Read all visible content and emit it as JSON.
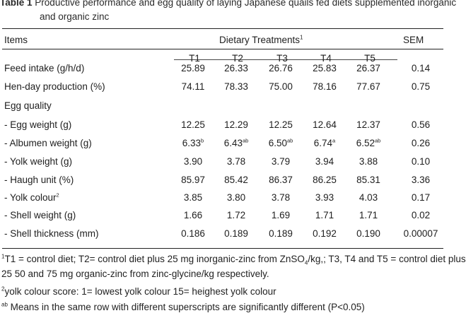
{
  "caption": {
    "label": "Table 1",
    "line1": "Productive performance and egg quality of laying Japanese quails fed diets supplemented inorganic",
    "line2": "and organic zinc"
  },
  "header": {
    "items": "Items",
    "treatments": "Dietary Treatments",
    "treatments_mark": "1",
    "sem": "SEM",
    "columns": [
      "T1",
      "T2",
      "T3",
      "T4",
      "T5"
    ]
  },
  "rows": [
    {
      "label": "Feed intake (g/h/d)",
      "values": [
        "25.89",
        "26.33",
        "26.76",
        "25.83",
        "26.37"
      ],
      "sups": [
        "",
        "",
        "",
        "",
        ""
      ],
      "sem": "0.14"
    },
    {
      "label": "Hen-day production (%)",
      "values": [
        "74.11",
        "78.33",
        "75.00",
        "78.16",
        "77.67"
      ],
      "sups": [
        "",
        "",
        "",
        "",
        ""
      ],
      "sem": "0.75"
    },
    {
      "label": "Egg quality",
      "values": [
        "",
        "",
        "",
        "",
        ""
      ],
      "sups": [
        "",
        "",
        "",
        "",
        ""
      ],
      "sem": ""
    },
    {
      "label": " - Egg weight (g)",
      "values": [
        "12.25",
        "12.29",
        "12.25",
        "12.64",
        "12.37"
      ],
      "sups": [
        "",
        "",
        "",
        "",
        ""
      ],
      "sem": "0.56"
    },
    {
      "label": " - Albumen weight (g)",
      "values": [
        "6.33",
        "6.43",
        "6.50",
        "6.74",
        "6.52"
      ],
      "sups": [
        "b",
        "ab",
        "ab",
        "a",
        "ab"
      ],
      "sem": "0.26"
    },
    {
      "label": " - Yolk weight (g)",
      "values": [
        "3.90",
        "3.78",
        "3.79",
        "3.94",
        "3.88"
      ],
      "sups": [
        "",
        "",
        "",
        "",
        ""
      ],
      "sem": "0.10"
    },
    {
      "label": " - Haugh unit (%)",
      "values": [
        "85.97",
        "85.42",
        "86.37",
        "86.25",
        "85.31"
      ],
      "sups": [
        "",
        "",
        "",
        "",
        ""
      ],
      "sem": "3.36"
    },
    {
      "label": " - Yolk colour",
      "label_sup": "2",
      "values": [
        "3.85",
        "3.80",
        "3.78",
        "3.93",
        "4.03"
      ],
      "sups": [
        "",
        "",
        "",
        "",
        ""
      ],
      "sem": "0.17"
    },
    {
      "label": " - Shell weight (g)",
      "values": [
        "1.66",
        "1.72",
        "1.69",
        "1.71",
        "1.71"
      ],
      "sups": [
        "",
        "",
        "",
        "",
        ""
      ],
      "sem": "0.02"
    },
    {
      "label": " - Shell thickness (mm)",
      "values": [
        "0.186",
        "0.189",
        "0.189",
        "0.192",
        "0.190"
      ],
      "sups": [
        "",
        "",
        "",
        "",
        ""
      ],
      "sem": "0.00007"
    }
  ],
  "footnotes": {
    "fn1_mark": "1",
    "fn1_a": "T1 = control diet; T2= control diet plus 25 mg inorganic-zinc from ZnSO",
    "fn1_sub": "4",
    "fn1_b": "/kg,; T3, T4 and T5 = control diet plus",
    "fn1_line2": "25 50 and 75 mg organic-zinc from zinc-glycine/kg respectively.",
    "fn2_mark": "2",
    "fn2": "yolk colour score: 1= lowest yolk colour 15= heighest yolk colour",
    "fn3_mark": "ab",
    "fn3": " Means in the same row with different superscripts are significantly different (P<0.05)"
  }
}
